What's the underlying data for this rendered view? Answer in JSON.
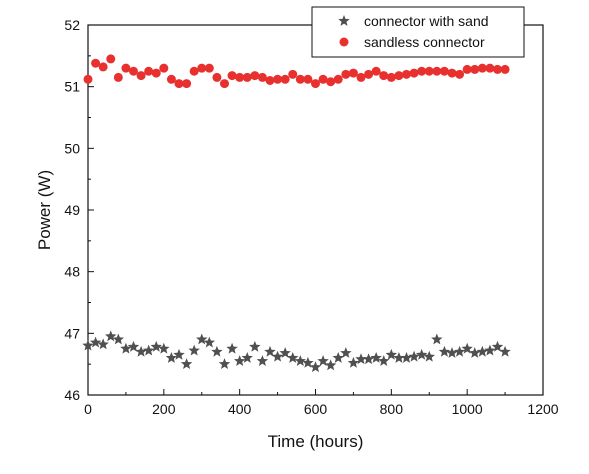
{
  "chart_data": {
    "type": "scatter",
    "title": "",
    "xlabel": "Time (hours)",
    "ylabel": "Power (W)",
    "xlim": [
      0,
      1200
    ],
    "ylim": [
      46,
      52
    ],
    "xticks": [
      0,
      200,
      400,
      600,
      800,
      1000,
      1200
    ],
    "yticks": [
      46,
      47,
      48,
      49,
      50,
      51,
      52
    ],
    "grid": false,
    "legend": "top-right",
    "series": [
      {
        "name": "connector with sand",
        "marker": "star",
        "color": "#505050",
        "x": [
          0,
          20,
          40,
          60,
          80,
          100,
          120,
          140,
          160,
          180,
          200,
          220,
          240,
          260,
          280,
          300,
          320,
          340,
          360,
          380,
          400,
          420,
          440,
          460,
          480,
          500,
          520,
          540,
          560,
          580,
          600,
          620,
          640,
          660,
          680,
          700,
          720,
          740,
          760,
          780,
          800,
          820,
          840,
          860,
          880,
          900,
          920,
          940,
          960,
          980,
          1000,
          1020,
          1040,
          1060,
          1080,
          1100
        ],
        "y": [
          46.8,
          46.85,
          46.82,
          46.95,
          46.9,
          46.75,
          46.78,
          46.7,
          46.72,
          46.78,
          46.75,
          46.6,
          46.65,
          46.5,
          46.72,
          46.9,
          46.85,
          46.7,
          46.5,
          46.75,
          46.55,
          46.6,
          46.78,
          46.55,
          46.7,
          46.62,
          46.68,
          46.6,
          46.55,
          46.52,
          46.45,
          46.55,
          46.48,
          46.6,
          46.68,
          46.52,
          46.58,
          46.58,
          46.6,
          46.55,
          46.65,
          46.6,
          46.6,
          46.62,
          46.65,
          46.62,
          46.9,
          46.7,
          46.68,
          46.7,
          46.75,
          46.68,
          46.7,
          46.72,
          46.78,
          46.7
        ]
      },
      {
        "name": "sandless connector",
        "marker": "circle",
        "color": "#e8312f",
        "x": [
          0,
          20,
          40,
          60,
          80,
          100,
          120,
          140,
          160,
          180,
          200,
          220,
          240,
          260,
          280,
          300,
          320,
          340,
          360,
          380,
          400,
          420,
          440,
          460,
          480,
          500,
          520,
          540,
          560,
          580,
          600,
          620,
          640,
          660,
          680,
          700,
          720,
          740,
          760,
          780,
          800,
          820,
          840,
          860,
          880,
          900,
          920,
          940,
          960,
          980,
          1000,
          1020,
          1040,
          1060,
          1080,
          1100
        ],
        "y": [
          51.12,
          51.38,
          51.32,
          51.45,
          51.15,
          51.3,
          51.25,
          51.18,
          51.25,
          51.22,
          51.3,
          51.12,
          51.05,
          51.05,
          51.25,
          51.3,
          51.3,
          51.15,
          51.05,
          51.18,
          51.15,
          51.15,
          51.18,
          51.15,
          51.1,
          51.12,
          51.12,
          51.2,
          51.12,
          51.12,
          51.05,
          51.12,
          51.08,
          51.12,
          51.2,
          51.22,
          51.15,
          51.2,
          51.25,
          51.18,
          51.15,
          51.18,
          51.2,
          51.22,
          51.25,
          51.25,
          51.25,
          51.25,
          51.22,
          51.2,
          51.28,
          51.28,
          51.3,
          51.3,
          51.28,
          51.28
        ]
      }
    ]
  }
}
